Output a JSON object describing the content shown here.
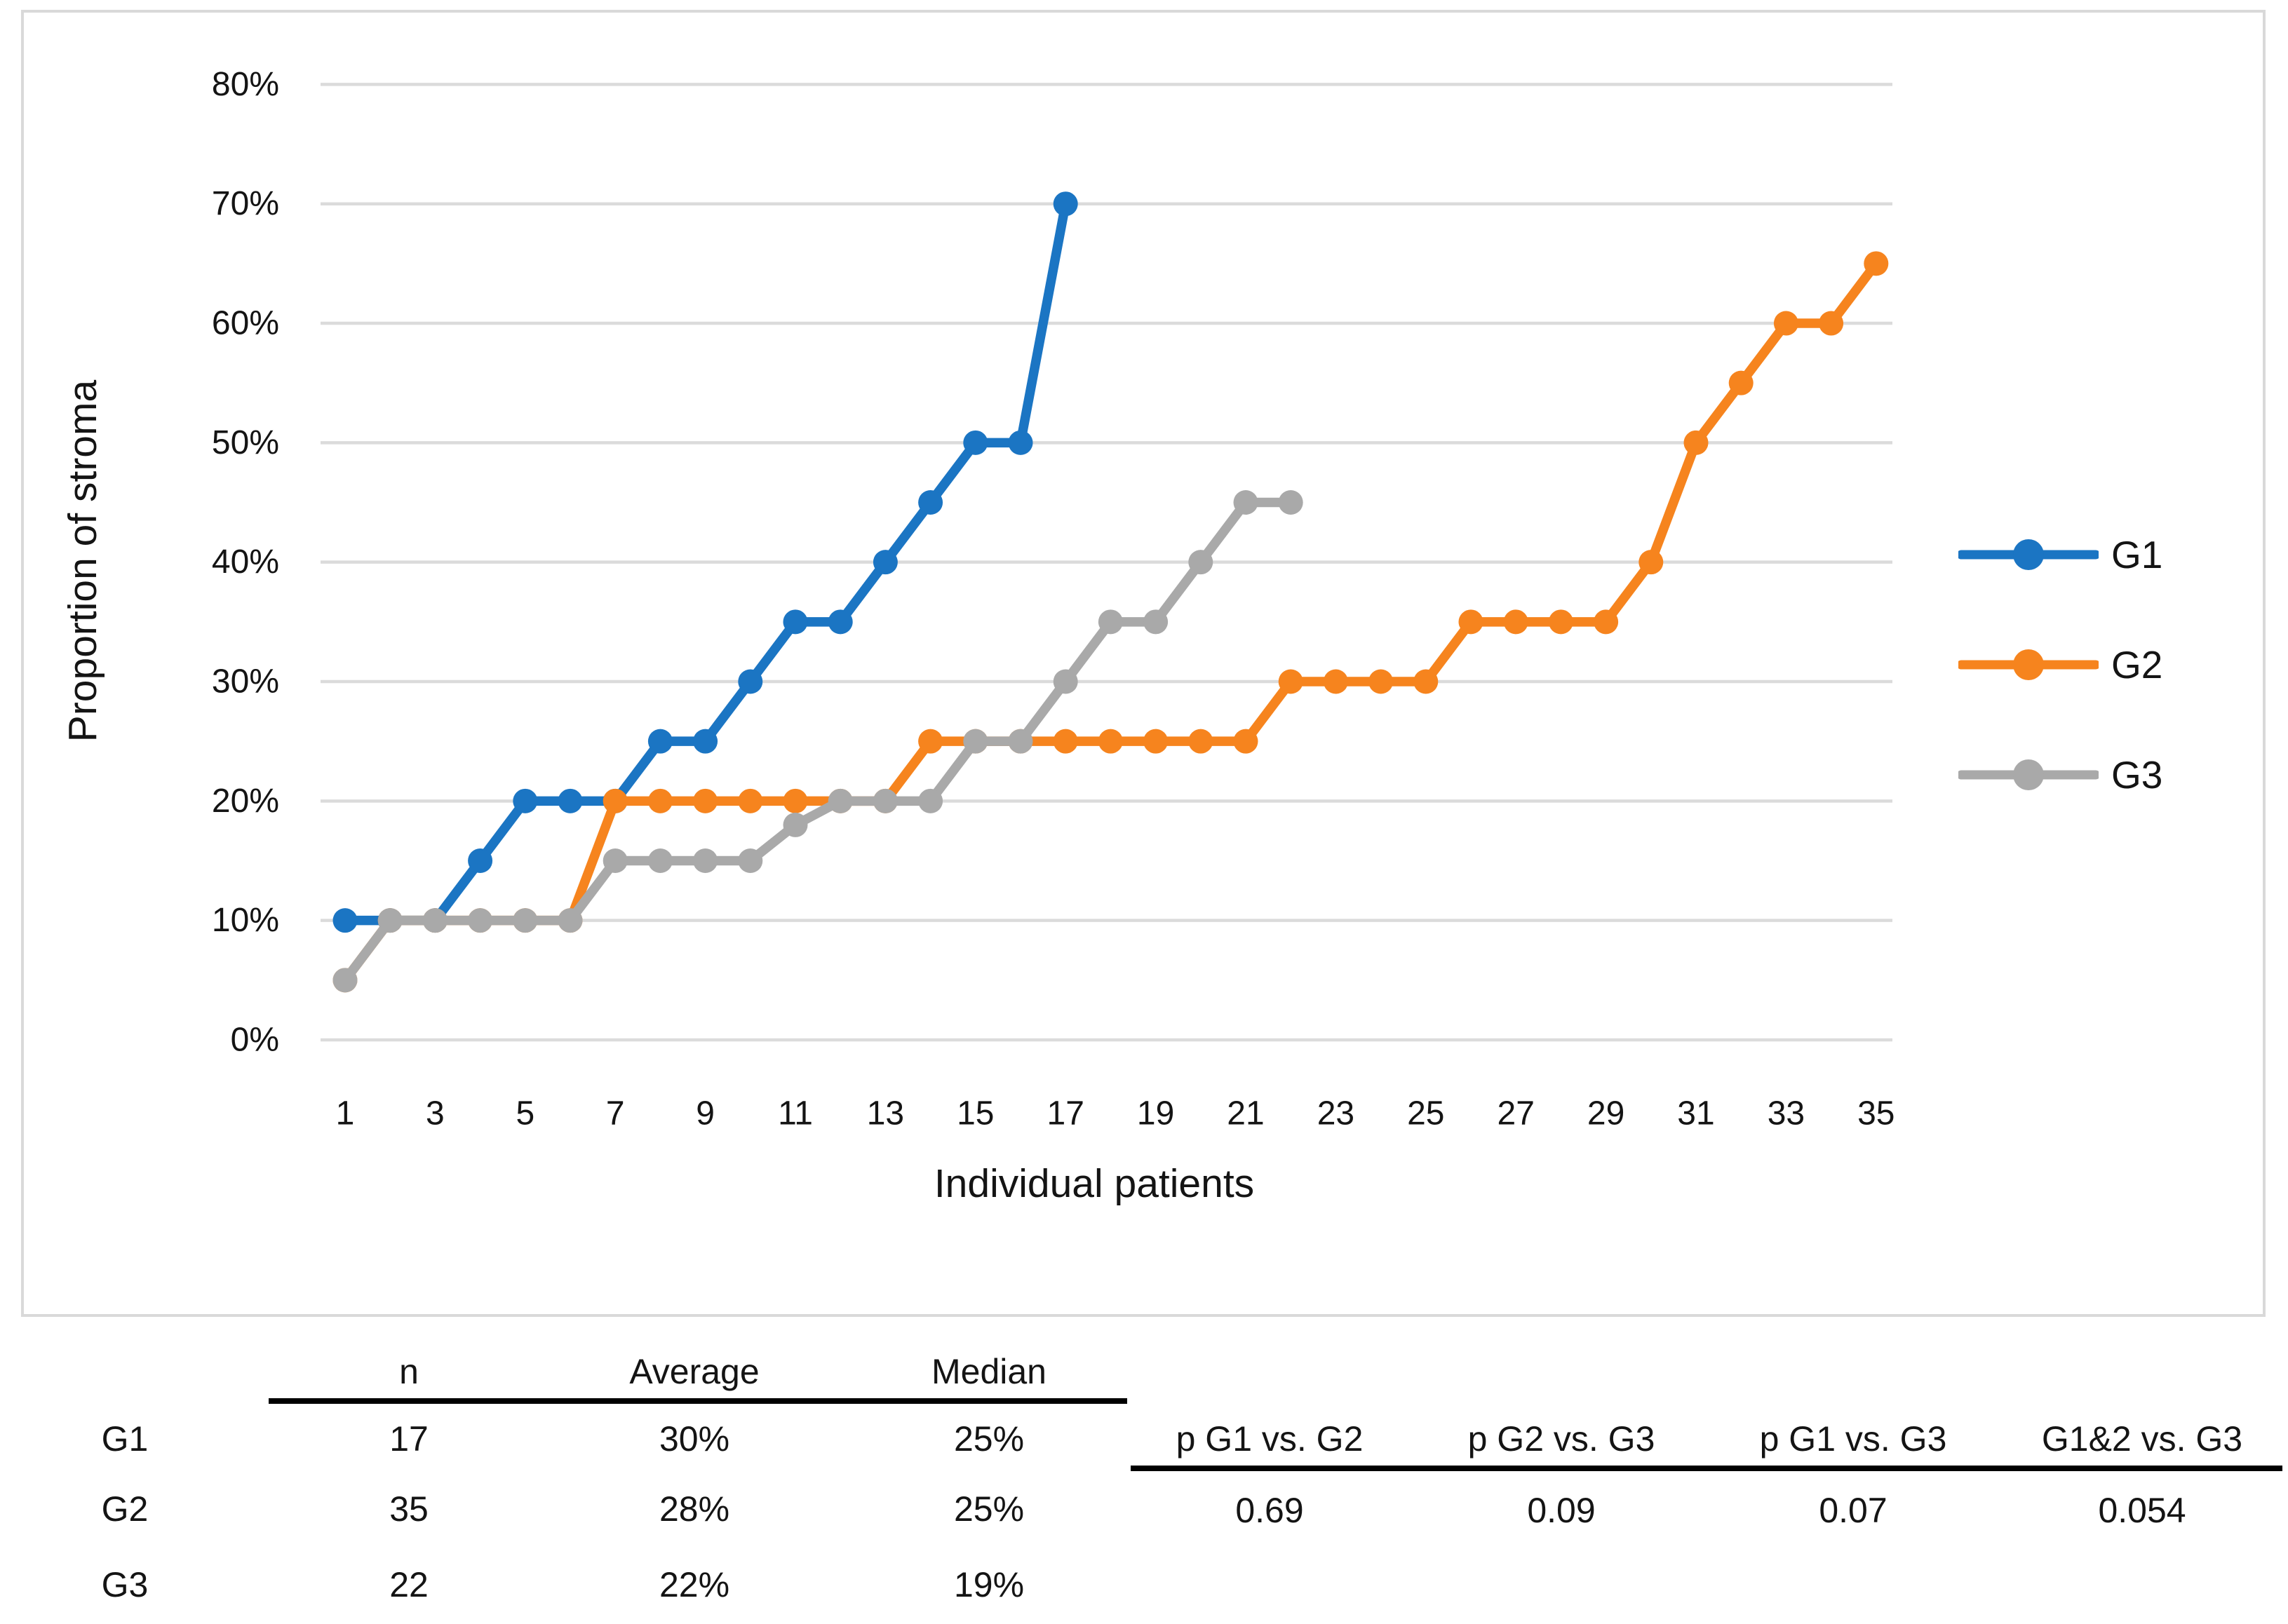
{
  "chart_data": {
    "type": "line",
    "title": "",
    "xlabel": "Individual patients",
    "ylabel": "Proportion of stroma",
    "ylim": [
      0,
      80
    ],
    "grid": true,
    "legend_position": "right",
    "ytick_values": [
      0,
      10,
      20,
      30,
      40,
      50,
      60,
      70,
      80
    ],
    "ytick_labels": [
      "0%",
      "10%",
      "20%",
      "30%",
      "40%",
      "50%",
      "60%",
      "70%",
      "80%"
    ],
    "xtick_values": [
      1,
      3,
      5,
      7,
      9,
      11,
      13,
      15,
      17,
      19,
      21,
      23,
      25,
      27,
      29,
      31,
      33,
      35
    ],
    "xtick_labels": [
      "1",
      "3",
      "5",
      "7",
      "9",
      "11",
      "13",
      "15",
      "17",
      "19",
      "21",
      "23",
      "25",
      "27",
      "29",
      "31",
      "33",
      "35"
    ],
    "series": [
      {
        "name": "G1",
        "color": "#1B75C3",
        "values": [
          10,
          10,
          10,
          15,
          20,
          20,
          20,
          25,
          25,
          30,
          35,
          35,
          40,
          45,
          50,
          50,
          70
        ]
      },
      {
        "name": "G2",
        "color": "#F6841E",
        "values": [
          5,
          10,
          10,
          10,
          10,
          10,
          20,
          20,
          20,
          20,
          20,
          20,
          20,
          25,
          25,
          25,
          25,
          25,
          25,
          25,
          25,
          30,
          30,
          30,
          30,
          35,
          35,
          35,
          35,
          40,
          50,
          55,
          60,
          60,
          65
        ]
      },
      {
        "name": "G3",
        "color": "#A9A9A9",
        "values": [
          5,
          10,
          10,
          10,
          10,
          10,
          15,
          15,
          15,
          15,
          18,
          20,
          20,
          20,
          25,
          25,
          30,
          35,
          35,
          40,
          45,
          45
        ]
      }
    ],
    "gridline_color": "#dbdbdb"
  },
  "stats_table": {
    "columns": [
      "n",
      "Average",
      "Median"
    ],
    "rows": [
      {
        "label": "G1",
        "n": "17",
        "average": "30%",
        "median": "25%"
      },
      {
        "label": "G2",
        "n": "35",
        "average": "28%",
        "median": "25%"
      },
      {
        "label": "G3",
        "n": "22",
        "average": "22%",
        "median": "19%"
      }
    ]
  },
  "pvalue_table": {
    "columns": [
      "p G1 vs. G2",
      "p G2 vs. G3",
      "p G1 vs. G3",
      "G1&2 vs. G3"
    ],
    "values": [
      "0.69",
      "0.09",
      "0.07",
      "0.054"
    ]
  }
}
